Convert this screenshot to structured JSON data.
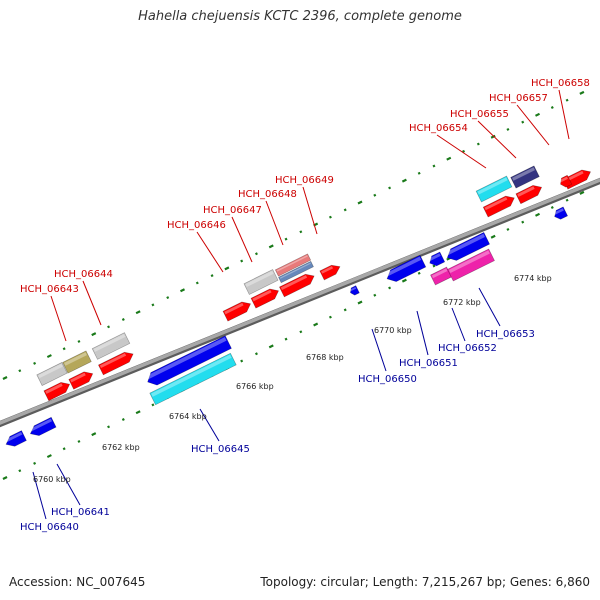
{
  "header": {
    "title": "Hahella chejuensis KCTC 2396, complete genome"
  },
  "footer": {
    "accession": "Accession: NC_007645",
    "summary": "Topology: circular; Length: 7,215,267 bp; Genes: 6,860"
  },
  "colors": {
    "forward_label": "#cc0000",
    "reverse_label": "#000099",
    "backbone": "#8c8c8c",
    "tick": "#1a7a1a",
    "red_gene": "#ff0000",
    "blue_gene": "#0000ee",
    "cyan_gene": "#22ddee",
    "grey_gene": "#c8c8c8",
    "olive_gene": "#b5a75a",
    "navy_gene": "#333380",
    "magenta_gene": "#ee22aa",
    "salmon_gene": "#e87a7a",
    "steel_gene": "#6688bb"
  },
  "scale_labels": [
    "6760 kbp",
    "6762 kbp",
    "6764 kbp",
    "6766 kbp",
    "6768 kbp",
    "6770 kbp",
    "6772 kbp",
    "6774 kbp"
  ],
  "forward_genes": [
    "HCH_06643",
    "HCH_06644",
    "HCH_06646",
    "HCH_06647",
    "HCH_06648",
    "HCH_06649",
    "HCH_06654",
    "HCH_06655",
    "HCH_06657",
    "HCH_06658"
  ],
  "reverse_genes": [
    "HCH_06640",
    "HCH_06641",
    "HCH_06645",
    "HCH_06650",
    "HCH_06651",
    "HCH_06652",
    "HCH_06653"
  ]
}
